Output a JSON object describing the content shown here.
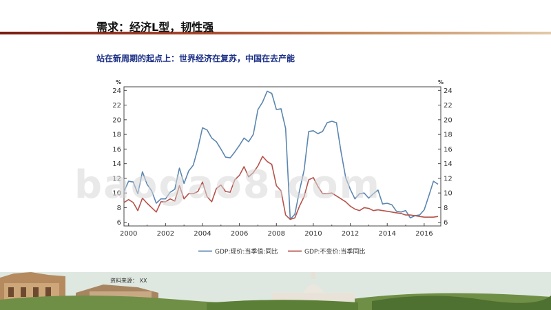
{
  "slide": {
    "title": "需求：经济L型，韧性强",
    "subtitle": "站在新周期的起点上：世界经济在复苏，中国在去产能",
    "source_note": "资料来源：  XX",
    "watermark": "baogao8.com"
  },
  "colors": {
    "title_rule": "#8b2a1a",
    "subtitle": "#1b2f86",
    "series_nominal": "#5b86b0",
    "series_real": "#b5524a"
  },
  "chart_data": {
    "type": "line",
    "title": "",
    "xlabel": "",
    "ylabel": "%",
    "y2label": "%",
    "ylim": [
      5.5,
      24.5
    ],
    "yticks": [
      6,
      8,
      10,
      12,
      14,
      16,
      18,
      20,
      22,
      24
    ],
    "xlim": [
      1999.75,
      2016.9
    ],
    "xticks": [
      2000,
      2002,
      2004,
      2006,
      2008,
      2010,
      2012,
      2014,
      2016
    ],
    "grid": false,
    "legend_position": "bottom",
    "series": [
      {
        "name": "GDP:现价:当季值:同比",
        "color": "#5b86b0",
        "x": [
          1999.75,
          2000.0,
          2000.25,
          2000.5,
          2000.75,
          2001.0,
          2001.25,
          2001.5,
          2001.75,
          2002.0,
          2002.25,
          2002.5,
          2002.75,
          2003.0,
          2003.25,
          2003.5,
          2003.75,
          2004.0,
          2004.25,
          2004.5,
          2004.75,
          2005.0,
          2005.25,
          2005.5,
          2005.75,
          2006.0,
          2006.25,
          2006.5,
          2006.75,
          2007.0,
          2007.25,
          2007.5,
          2007.75,
          2008.0,
          2008.25,
          2008.5,
          2008.75,
          2009.0,
          2009.25,
          2009.5,
          2009.75,
          2010.0,
          2010.25,
          2010.5,
          2010.75,
          2011.0,
          2011.25,
          2011.5,
          2011.75,
          2012.0,
          2012.25,
          2012.5,
          2012.75,
          2013.0,
          2013.25,
          2013.5,
          2013.75,
          2014.0,
          2014.25,
          2014.5,
          2014.75,
          2015.0,
          2015.25,
          2015.5,
          2015.75,
          2016.0,
          2016.25,
          2016.5,
          2016.75
        ],
        "values": [
          10.2,
          11.6,
          11.5,
          9.9,
          12.9,
          11.2,
          10.3,
          8.6,
          9.2,
          9.2,
          10.1,
          10.5,
          13.4,
          11.3,
          13.0,
          13.8,
          16.1,
          18.9,
          18.6,
          17.5,
          17.0,
          16.0,
          14.9,
          14.8,
          15.6,
          16.5,
          17.5,
          17.0,
          18.0,
          21.4,
          22.4,
          23.9,
          23.6,
          21.4,
          21.5,
          18.8,
          6.4,
          7.1,
          10.3,
          13.1,
          18.4,
          18.5,
          18.1,
          18.4,
          19.6,
          19.8,
          19.6,
          15.6,
          12.1,
          10.5,
          9.2,
          9.9,
          10.0,
          9.3,
          9.9,
          10.4,
          8.5,
          8.6,
          8.4,
          7.5,
          7.4,
          7.6,
          6.6,
          6.9,
          7.0,
          7.7,
          9.6,
          11.6,
          11.2
        ]
      },
      {
        "name": "GDP:不变价:当季同比",
        "color": "#b5524a",
        "x": [
          1999.75,
          2000.0,
          2000.25,
          2000.5,
          2000.75,
          2001.0,
          2001.25,
          2001.5,
          2001.75,
          2002.0,
          2002.25,
          2002.5,
          2002.75,
          2003.0,
          2003.25,
          2003.5,
          2003.75,
          2004.0,
          2004.25,
          2004.5,
          2004.75,
          2005.0,
          2005.25,
          2005.5,
          2005.75,
          2006.0,
          2006.25,
          2006.5,
          2006.75,
          2007.0,
          2007.25,
          2007.5,
          2007.75,
          2008.0,
          2008.25,
          2008.5,
          2008.75,
          2009.0,
          2009.25,
          2009.5,
          2009.75,
          2010.0,
          2010.25,
          2010.5,
          2010.75,
          2011.0,
          2011.25,
          2011.5,
          2011.75,
          2012.0,
          2012.25,
          2012.5,
          2012.75,
          2013.0,
          2013.25,
          2013.5,
          2013.75,
          2014.0,
          2014.25,
          2014.5,
          2014.75,
          2015.0,
          2015.25,
          2015.5,
          2015.75,
          2016.0,
          2016.25,
          2016.5,
          2016.75
        ],
        "values": [
          8.7,
          9.1,
          8.7,
          7.6,
          9.3,
          8.6,
          8.0,
          7.4,
          8.8,
          8.8,
          9.2,
          8.9,
          11.0,
          9.2,
          9.9,
          9.9,
          10.2,
          11.5,
          9.5,
          8.8,
          10.6,
          11.1,
          10.2,
          10.1,
          11.8,
          12.4,
          13.6,
          12.2,
          12.8,
          13.7,
          15.0,
          14.3,
          13.9,
          11.0,
          10.3,
          7.0,
          6.4,
          6.6,
          8.2,
          9.5,
          11.8,
          12.1,
          10.9,
          9.9,
          9.9,
          10.0,
          9.6,
          9.2,
          8.8,
          8.2,
          7.8,
          7.6,
          8.0,
          7.9,
          7.6,
          7.7,
          7.6,
          7.5,
          7.4,
          7.3,
          7.2,
          7.0,
          7.0,
          6.9,
          6.8,
          6.7,
          6.7,
          6.7,
          6.8
        ]
      }
    ]
  }
}
